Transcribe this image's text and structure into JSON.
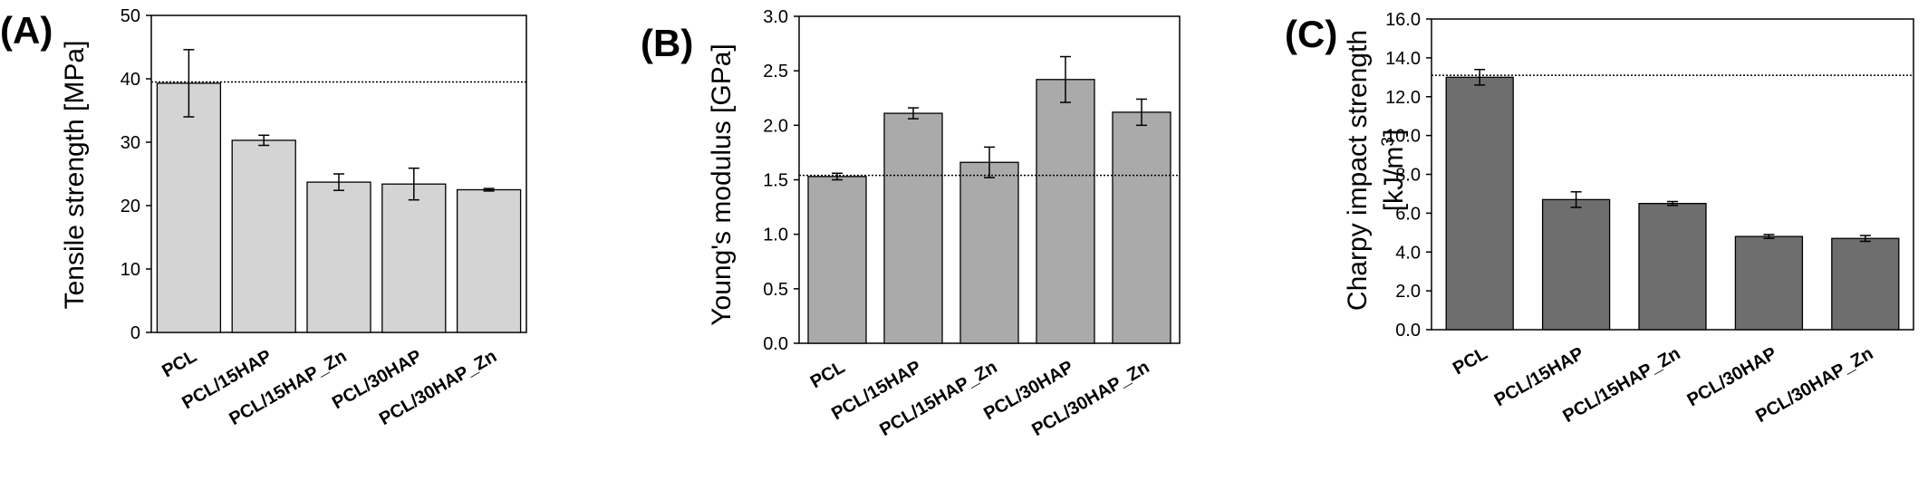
{
  "chart_data": [
    {
      "type": "bar",
      "panel_label": "(A)",
      "ylabel": "Tensile strength [MPa]",
      "ylim": [
        0,
        50
      ],
      "yticks": [
        "0",
        "10",
        "20",
        "30",
        "40",
        "50"
      ],
      "categories": [
        "PCL",
        "PCL/15HAP",
        "PCL/15HAP_Zn",
        "PCL/30HAP",
        "PCL/30HAP_Zn"
      ],
      "values": [
        39.3,
        30.3,
        23.7,
        23.4,
        22.5
      ],
      "errors": [
        5.3,
        0.8,
        1.3,
        2.5,
        0.2
      ],
      "reference_line": 39.5,
      "bar_color": "#d4d4d4"
    },
    {
      "type": "bar",
      "panel_label": "(B)",
      "ylabel": "Young's modulus [GPa]",
      "ylim": [
        0,
        3
      ],
      "yticks": [
        "0.0",
        "0.5",
        "1.0",
        "1.5",
        "2.0",
        "2.5",
        "3.0"
      ],
      "categories": [
        "PCL",
        "PCL/15HAP",
        "PCL/15HAP_Zn",
        "PCL/30HAP",
        "PCL/30HAP_Zn"
      ],
      "values": [
        1.53,
        2.11,
        1.66,
        2.42,
        2.12
      ],
      "errors": [
        0.03,
        0.05,
        0.14,
        0.21,
        0.12
      ],
      "reference_line": 1.54,
      "bar_color": "#aaaaaa"
    },
    {
      "type": "bar",
      "panel_label": "(C)",
      "ylabel": "Charpy impact strength [kJ/m³]",
      "ylim": [
        0,
        16
      ],
      "yticks": [
        "0.0",
        "2.0",
        "4.0",
        "6.0",
        "8.0",
        "10.0",
        "12.0",
        "14.0",
        "16.0"
      ],
      "categories": [
        "PCL",
        "PCL/15HAP",
        "PCL/15HAP_Zn",
        "PCL/30HAP",
        "PCL/30HAP_Zn"
      ],
      "values": [
        13.0,
        6.7,
        6.5,
        4.8,
        4.7
      ],
      "errors": [
        0.4,
        0.4,
        0.1,
        0.1,
        0.15
      ],
      "reference_line": 13.1,
      "bar_color": "#6e6e6e"
    }
  ]
}
